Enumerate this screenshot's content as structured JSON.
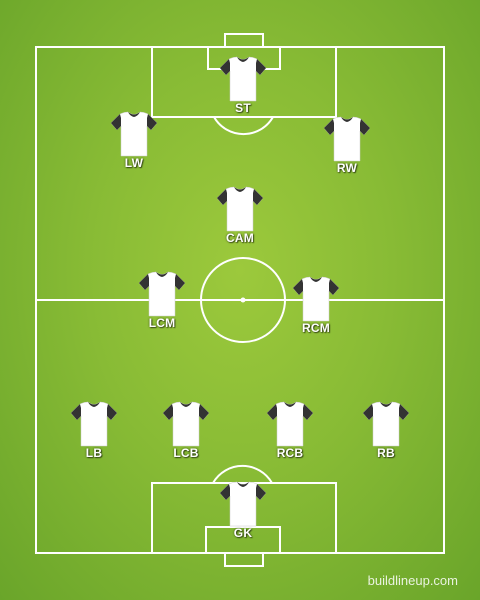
{
  "pitch": {
    "grass_color": "#88bb35",
    "line_color": "#ffffff"
  },
  "jersey": {
    "body_color": "#ffffff",
    "sleeve_color": "#333333"
  },
  "players": [
    {
      "label": "ST"
    },
    {
      "label": "LW"
    },
    {
      "label": "RW"
    },
    {
      "label": "CAM"
    },
    {
      "label": "LCM"
    },
    {
      "label": "RCM"
    },
    {
      "label": "LB"
    },
    {
      "label": "LCB"
    },
    {
      "label": "RCB"
    },
    {
      "label": "RB"
    },
    {
      "label": "GK"
    }
  ],
  "watermark": "buildlineup.com"
}
